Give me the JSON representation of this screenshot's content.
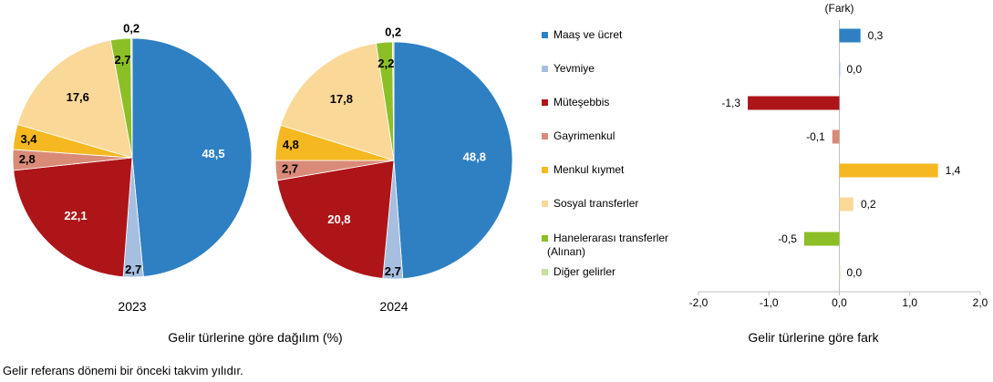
{
  "chart_data": [
    {
      "type": "pie",
      "title": "",
      "categories": [
        "Maaş ve ücret",
        "Yevmiye",
        "Müteşebbis",
        "Gayrimenkul",
        "Menkul kıymet",
        "Sosyal transferler",
        "Hanelerarası transferler (Alınan)",
        "Diğer gelirler"
      ],
      "values": [
        48.5,
        2.7,
        22.1,
        2.8,
        3.4,
        17.6,
        2.7,
        0.2
      ],
      "labels": [
        "48,5",
        "2,7",
        "22,1",
        "2,8",
        "3,4",
        "17,6",
        "2,7",
        "0,2"
      ],
      "year_label": "2023"
    },
    {
      "type": "pie",
      "title": "",
      "categories": [
        "Maaş ve ücret",
        "Yevmiye",
        "Müteşebbis",
        "Gayrimenkul",
        "Menkul kıymet",
        "Sosyal transferler",
        "Hanelerarası transferler (Alınan)",
        "Diğer gelirler"
      ],
      "values": [
        48.8,
        2.7,
        20.8,
        2.7,
        4.8,
        17.8,
        2.2,
        0.2
      ],
      "labels": [
        "48,8",
        "2,7",
        "20,8",
        "2,7",
        "4,8",
        "17,8",
        "2,2",
        "0,2"
      ],
      "year_label": "2024"
    },
    {
      "type": "bar",
      "orientation": "horizontal",
      "categories": [
        "Maaş ve ücret",
        "Yevmiye",
        "Müteşebbis",
        "Gayrimenkul",
        "Menkul kıymet",
        "Sosyal transferler",
        "Hanelerarası transferler (Alınan)",
        "Diğer gelirler"
      ],
      "values": [
        0.3,
        0.0,
        -1.3,
        -0.1,
        1.4,
        0.2,
        -0.5,
        0.0
      ],
      "labels": [
        "0,3",
        "0,0",
        "-1,3",
        "-0,1",
        "1,4",
        "0,2",
        "-0,5",
        "0,0"
      ],
      "xlim": [
        -2.0,
        2.0
      ],
      "xticks": [
        "-2,0",
        "-1,0",
        "0,0",
        "1,0",
        "2,0"
      ],
      "unit_label": "(Fark)",
      "xlabel": "Gelir türlerine göre fark"
    }
  ],
  "legend": {
    "items": [
      {
        "label": "Maaş ve ücret"
      },
      {
        "label": "Yevmiye"
      },
      {
        "label": "Müteşebbis"
      },
      {
        "label": "Gayrimenkul"
      },
      {
        "label": "Menkul kıymet"
      },
      {
        "label": "Sosyal transferler"
      },
      {
        "label": "Hanelerarası transferler",
        "label2": "(Alınan)"
      },
      {
        "label": "Diğer gelirler"
      }
    ]
  },
  "colors": [
    "#2e80c3",
    "#a6bfe0",
    "#ad1519",
    "#d98b78",
    "#f5b820",
    "#fad898",
    "#8cbf26",
    "#c8e0a0"
  ],
  "pie_section_label": "Gelir türlerine göre dağılım (%)",
  "footnote": "Gelir referans dönemi bir önceki takvim yılıdır."
}
